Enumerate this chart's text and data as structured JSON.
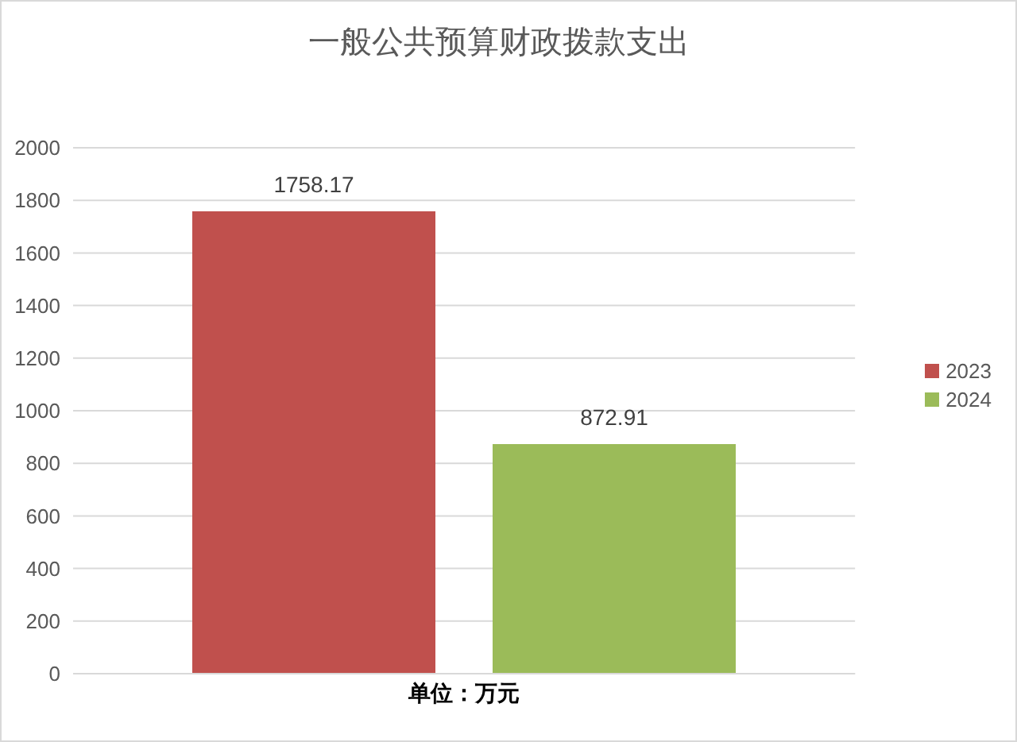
{
  "chart_data": {
    "type": "bar",
    "title": "一般公共预算财政拨款支出",
    "xlabel": "单位：万元",
    "categories": [
      null
    ],
    "series": [
      {
        "name": "2023",
        "color": "#c0504d",
        "values": [
          1758.17
        ]
      },
      {
        "name": "2024",
        "color": "#9bbb59",
        "values": [
          872.91
        ]
      }
    ],
    "ylim": [
      0,
      2000
    ],
    "yticks": [
      0,
      200,
      400,
      600,
      800,
      1000,
      1200,
      1400,
      1600,
      1800,
      2000
    ],
    "grid": "y",
    "legend": "right",
    "data_labels": true,
    "tick_labels": "y"
  }
}
